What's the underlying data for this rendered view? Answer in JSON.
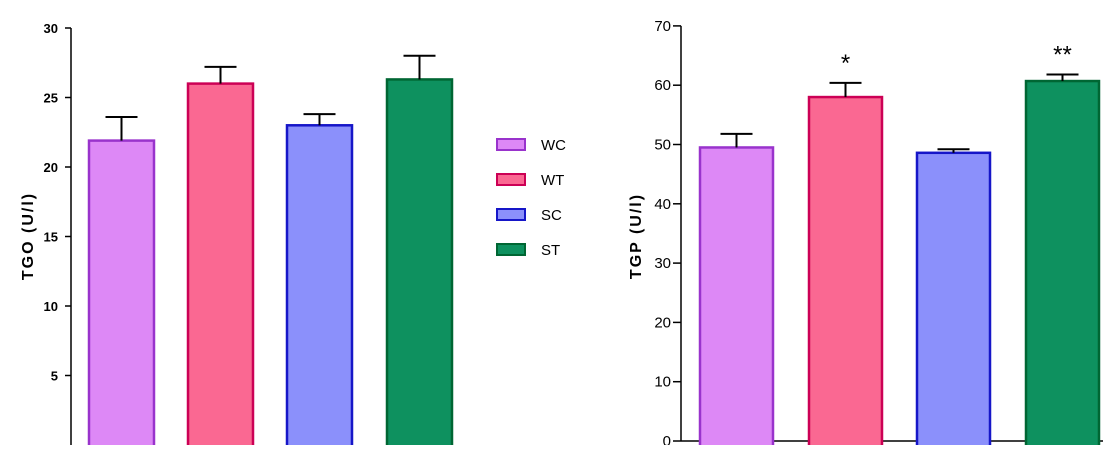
{
  "legend": [
    {
      "label": "WC",
      "fill": "#DD88F6",
      "stroke": "#9933CC"
    },
    {
      "label": "WT",
      "fill": "#FA6892",
      "stroke": "#CC0055"
    },
    {
      "label": "SC",
      "fill": "#8B90FB",
      "stroke": "#1616C8"
    },
    {
      "label": "ST",
      "fill": "#0E915F",
      "stroke": "#006633"
    }
  ],
  "chart_data": [
    {
      "type": "bar",
      "ylabel": "TGO (U/l)",
      "ylim": [
        0,
        30
      ],
      "yticks": [
        5,
        10,
        15,
        20,
        25,
        30
      ],
      "categories": [
        "WC",
        "WT",
        "SC",
        "ST"
      ],
      "values": [
        21.9,
        26.0,
        23.0,
        26.3
      ],
      "errors": [
        1.7,
        1.2,
        0.8,
        1.7
      ],
      "annotations": [
        "",
        "",
        "",
        ""
      ],
      "grid": false
    },
    {
      "type": "bar",
      "ylabel": "TGP (U/l)",
      "ylim": [
        0,
        70
      ],
      "yticks": [
        0,
        10,
        20,
        30,
        40,
        50,
        60,
        70
      ],
      "categories": [
        "WC",
        "WT",
        "SC",
        "ST"
      ],
      "values": [
        49.5,
        58.0,
        48.6,
        60.7
      ],
      "errors": [
        2.3,
        2.4,
        0.6,
        1.1
      ],
      "annotations": [
        "",
        "*",
        "",
        "**"
      ],
      "grid": false
    }
  ]
}
